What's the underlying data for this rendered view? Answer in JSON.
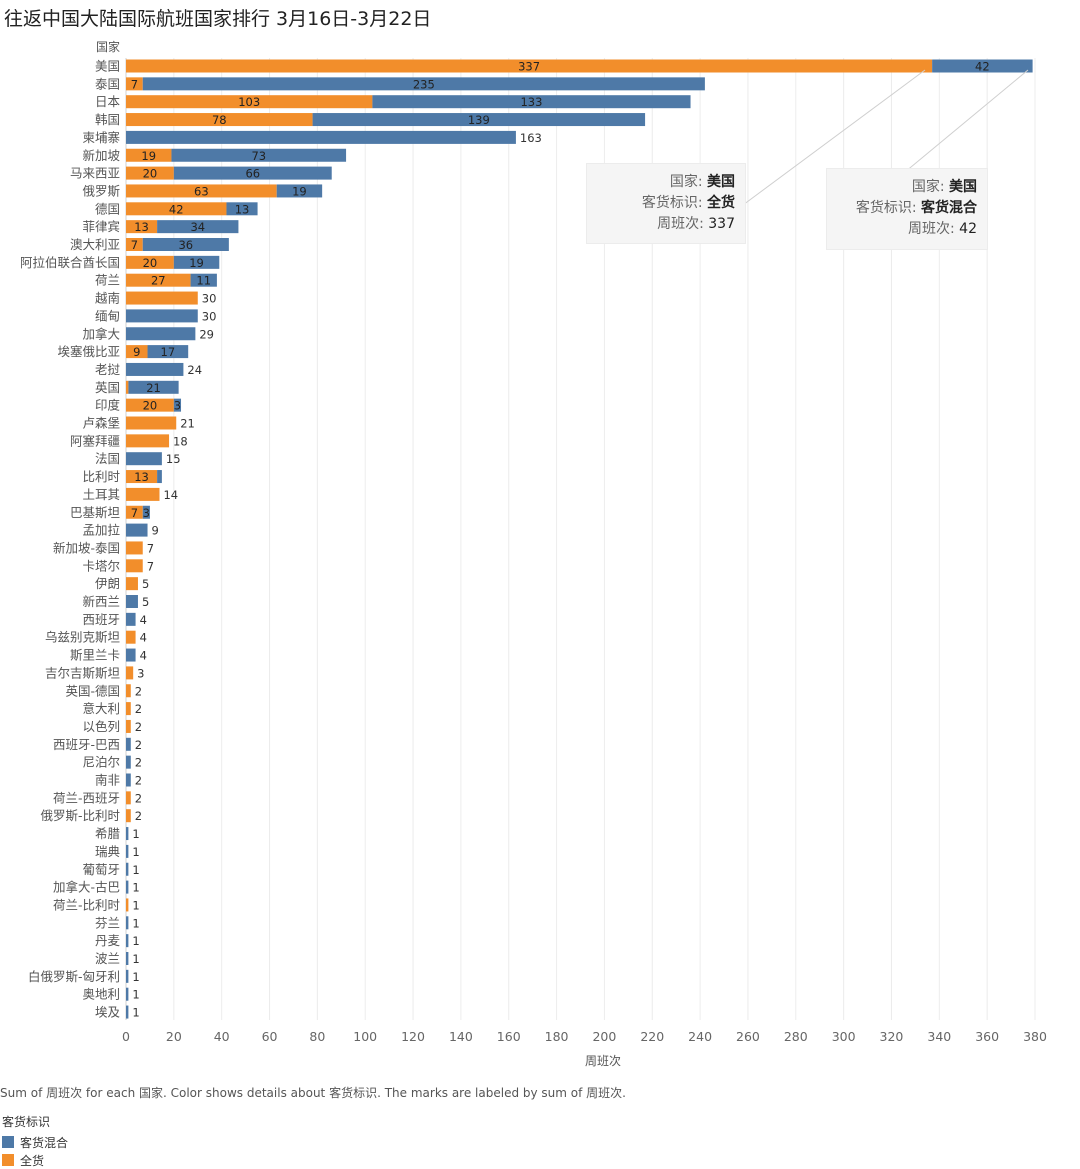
{
  "title": "往返中国大陆国际航班国家排行 3月16日-3月22日",
  "caption": "Sum of 周班次 for each 国家. Color shows details about 客货标识. The marks are labeled by sum of 周班次.",
  "legend": {
    "title": "客货标识",
    "items": [
      {
        "label": "客货混合",
        "color": "#4e79a7"
      },
      {
        "label": "全货",
        "color": "#f28e2b"
      }
    ]
  },
  "tooltips": [
    {
      "k1": "国家:",
      "v1": "美国",
      "k2": "客货标识:",
      "v2": "全货",
      "k3": "周班次:",
      "v3": "337"
    },
    {
      "k1": "国家:",
      "v1": "美国",
      "k2": "客货标识:",
      "v2": "客货混合",
      "k3": "周班次:",
      "v3": "42"
    }
  ],
  "chart_data": {
    "type": "bar",
    "orientation": "horizontal",
    "stacked": true,
    "ylabel": "国家",
    "xlabel": "周班次",
    "xlim": [
      0,
      380
    ],
    "xticks": [
      0,
      20,
      40,
      60,
      80,
      100,
      120,
      140,
      160,
      180,
      200,
      220,
      240,
      260,
      280,
      300,
      320,
      340,
      360,
      380
    ],
    "grid": true,
    "colors": {
      "全货": "#f28e2b",
      "客货混合": "#4e79a7"
    },
    "series_names": [
      "全货",
      "客货混合"
    ],
    "categories": [
      "美国",
      "泰国",
      "日本",
      "韩国",
      "柬埔寨",
      "新加坡",
      "马来西亚",
      "俄罗斯",
      "德国",
      "菲律宾",
      "澳大利亚",
      "阿拉伯联合酋长国",
      "荷兰",
      "越南",
      "缅甸",
      "加拿大",
      "埃塞俄比亚",
      "老挝",
      "英国",
      "印度",
      "卢森堡",
      "阿塞拜疆",
      "法国",
      "比利时",
      "土耳其",
      "巴基斯坦",
      "孟加拉",
      "新加坡-泰国",
      "卡塔尔",
      "伊朗",
      "新西兰",
      "西班牙",
      "乌兹别克斯坦",
      "斯里兰卡",
      "吉尔吉斯斯坦",
      "英国-德国",
      "意大利",
      "以色列",
      "西班牙-巴西",
      "尼泊尔",
      "南非",
      "荷兰-西班牙",
      "俄罗斯-比利时",
      "希腊",
      "瑞典",
      "葡萄牙",
      "加拿大-古巴",
      "荷兰-比利时",
      "芬兰",
      "丹麦",
      "波兰",
      "白俄罗斯-匈牙利",
      "奥地利",
      "埃及"
    ],
    "cargo": [
      337,
      7,
      103,
      78,
      0,
      19,
      20,
      63,
      42,
      13,
      7,
      20,
      27,
      30,
      0,
      0,
      9,
      0,
      1,
      20,
      21,
      18,
      0,
      13,
      14,
      7,
      0,
      7,
      7,
      5,
      0,
      0,
      4,
      0,
      3,
      2,
      2,
      2,
      0,
      0,
      0,
      2,
      2,
      0,
      0,
      0,
      0,
      1,
      0,
      0,
      0,
      0,
      0,
      0
    ],
    "mixed": [
      42,
      235,
      133,
      139,
      163,
      73,
      66,
      19,
      13,
      34,
      36,
      19,
      11,
      0,
      30,
      29,
      17,
      24,
      21,
      3,
      0,
      0,
      15,
      2,
      0,
      3,
      9,
      0,
      0,
      0,
      5,
      4,
      0,
      4,
      0,
      0,
      0,
      0,
      2,
      2,
      2,
      0,
      0,
      1,
      1,
      1,
      1,
      0,
      1,
      1,
      1,
      1,
      1,
      1
    ],
    "cargo_labels": [
      "337",
      "7",
      "103",
      "78",
      "",
      "19",
      "20",
      "63",
      "42",
      "13",
      "7",
      "20",
      "27",
      "",
      "",
      "",
      "9",
      "",
      "",
      "20",
      "",
      "",
      "",
      "13",
      "",
      "7",
      "",
      "",
      "",
      "",
      "",
      "",
      "",
      "",
      "",
      "",
      "",
      "",
      "",
      "",
      "",
      "",
      "",
      "",
      "",
      "",
      "",
      "",
      "",
      "",
      "",
      "",
      "",
      ""
    ],
    "mixed_labels": [
      "42",
      "235",
      "133",
      "139",
      "",
      "73",
      "66",
      "19",
      "13",
      "34",
      "36",
      "19",
      "11",
      "",
      "",
      "",
      "17",
      "",
      "21",
      "3",
      "",
      "",
      "",
      "",
      "",
      "3",
      "",
      "",
      "",
      "",
      "",
      "",
      "",
      "",
      "",
      "",
      "",
      "",
      "",
      "",
      "",
      "",
      "",
      "",
      "",
      "",
      "",
      "",
      "",
      "",
      "",
      "",
      "",
      ""
    ],
    "total_labels": [
      "",
      "",
      "",
      "",
      "163",
      "",
      "",
      "",
      "",
      "",
      "",
      "",
      "",
      "30",
      "30",
      "29",
      "",
      "24",
      "",
      "",
      "21",
      "18",
      "15",
      "",
      "14",
      "",
      "9",
      "7",
      "7",
      "5",
      "5",
      "4",
      "4",
      "4",
      "3",
      "2",
      "2",
      "2",
      "2",
      "2",
      "2",
      "2",
      "2",
      "1",
      "1",
      "1",
      "1",
      "1",
      "1",
      "1",
      "1",
      "1",
      "1",
      "1"
    ]
  }
}
